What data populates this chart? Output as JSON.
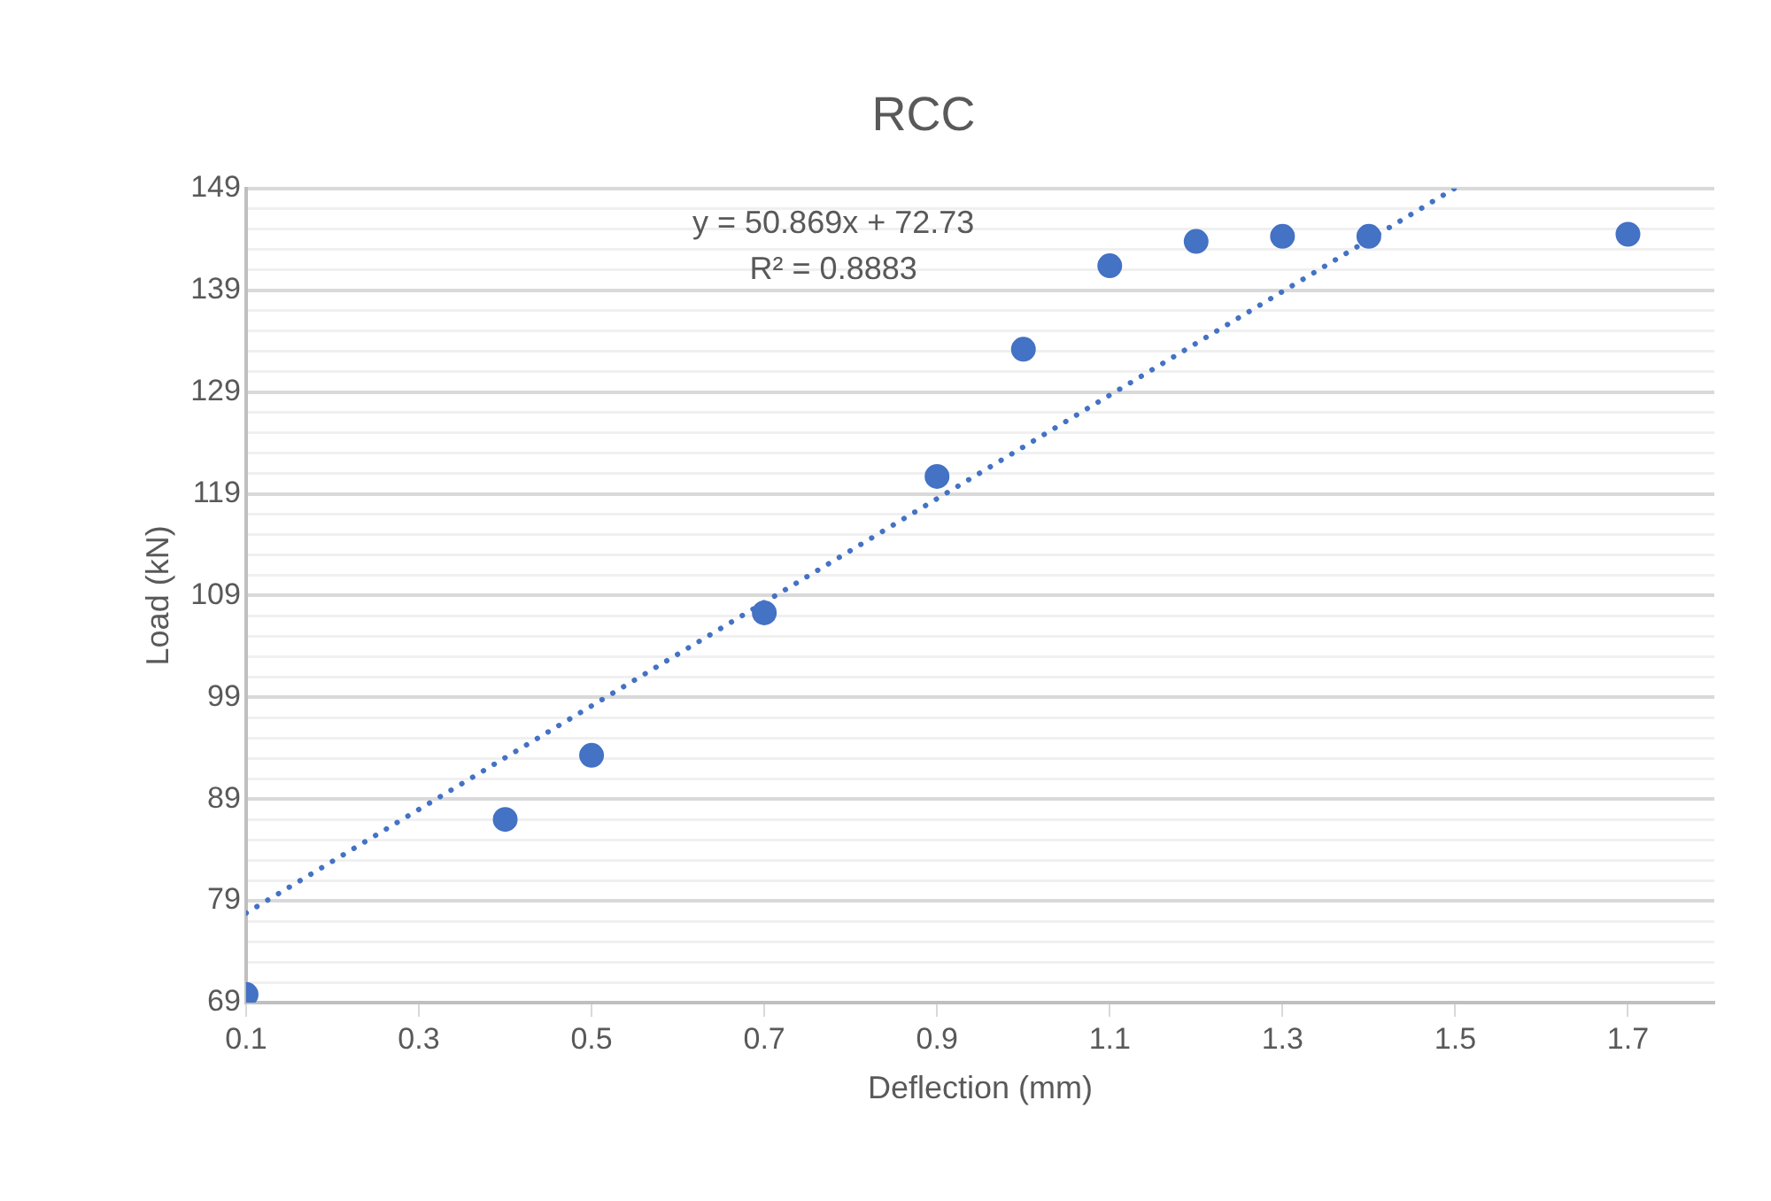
{
  "chart_data": {
    "type": "scatter",
    "title": "RCC",
    "xlabel": "Deflection (mm)",
    "ylabel": "Load (kN)",
    "xlim": [
      0.1,
      1.8
    ],
    "xticks": [
      0.1,
      0.3,
      0.5,
      0.7,
      0.9,
      1.1,
      1.3,
      1.5,
      1.7
    ],
    "ylim": [
      69,
      149
    ],
    "yticks": [
      69,
      {
        "value": 71,
        "label": null
      },
      {
        "value": 73,
        "label": null
      },
      {
        "value": 75,
        "label": null
      },
      {
        "value": 77,
        "label": null
      },
      79,
      {
        "value": 81,
        "label": null
      },
      {
        "value": 83,
        "label": null
      },
      {
        "value": 85,
        "label": null
      },
      {
        "value": 87,
        "label": null
      },
      89,
      {
        "value": 91,
        "label": null
      },
      {
        "value": 93,
        "label": null
      },
      {
        "value": 95,
        "label": null
      },
      {
        "value": 97,
        "label": null
      },
      99,
      {
        "value": 101,
        "label": null
      },
      {
        "value": 103,
        "label": null
      },
      {
        "value": 105,
        "label": null
      },
      {
        "value": 107,
        "label": null
      },
      109,
      {
        "value": 111,
        "label": null
      },
      {
        "value": 113,
        "label": null
      },
      {
        "value": 115,
        "label": null
      },
      {
        "value": 117,
        "label": null
      },
      119,
      {
        "value": 121,
        "label": null
      },
      {
        "value": 123,
        "label": null
      },
      {
        "value": 125,
        "label": null
      },
      {
        "value": 127,
        "label": null
      },
      129,
      {
        "value": 131,
        "label": null
      },
      {
        "value": 133,
        "label": null
      },
      {
        "value": 135,
        "label": null
      },
      {
        "value": 137,
        "label": null
      },
      139,
      {
        "value": 141,
        "label": null
      },
      {
        "value": 143,
        "label": null
      },
      {
        "value": 145,
        "label": null
      },
      {
        "value": 147,
        "label": null
      },
      149
    ],
    "grid": "y",
    "legend": false,
    "marker": "circle",
    "series": [
      {
        "type": "scatter",
        "color": "#4472c4",
        "x": [
          0.1,
          0.4,
          0.5,
          0.7,
          0.9,
          1.0,
          1.1,
          1.2,
          1.3,
          1.4,
          1.7
        ],
        "values": [
          69.8,
          87.0,
          93.3,
          107.3,
          120.7,
          133.2,
          141.4,
          143.8,
          144.3,
          144.3,
          144.5
        ]
      },
      {
        "type": "line",
        "color": "#4472c4",
        "line_style": "dotted",
        "marker": "none",
        "x": [
          0.1,
          1.499
        ],
        "values": [
          77.8,
          149.0
        ]
      }
    ],
    "annotations": [
      "y = 50.869x + 72.73\nR² = 0.8883"
    ]
  }
}
